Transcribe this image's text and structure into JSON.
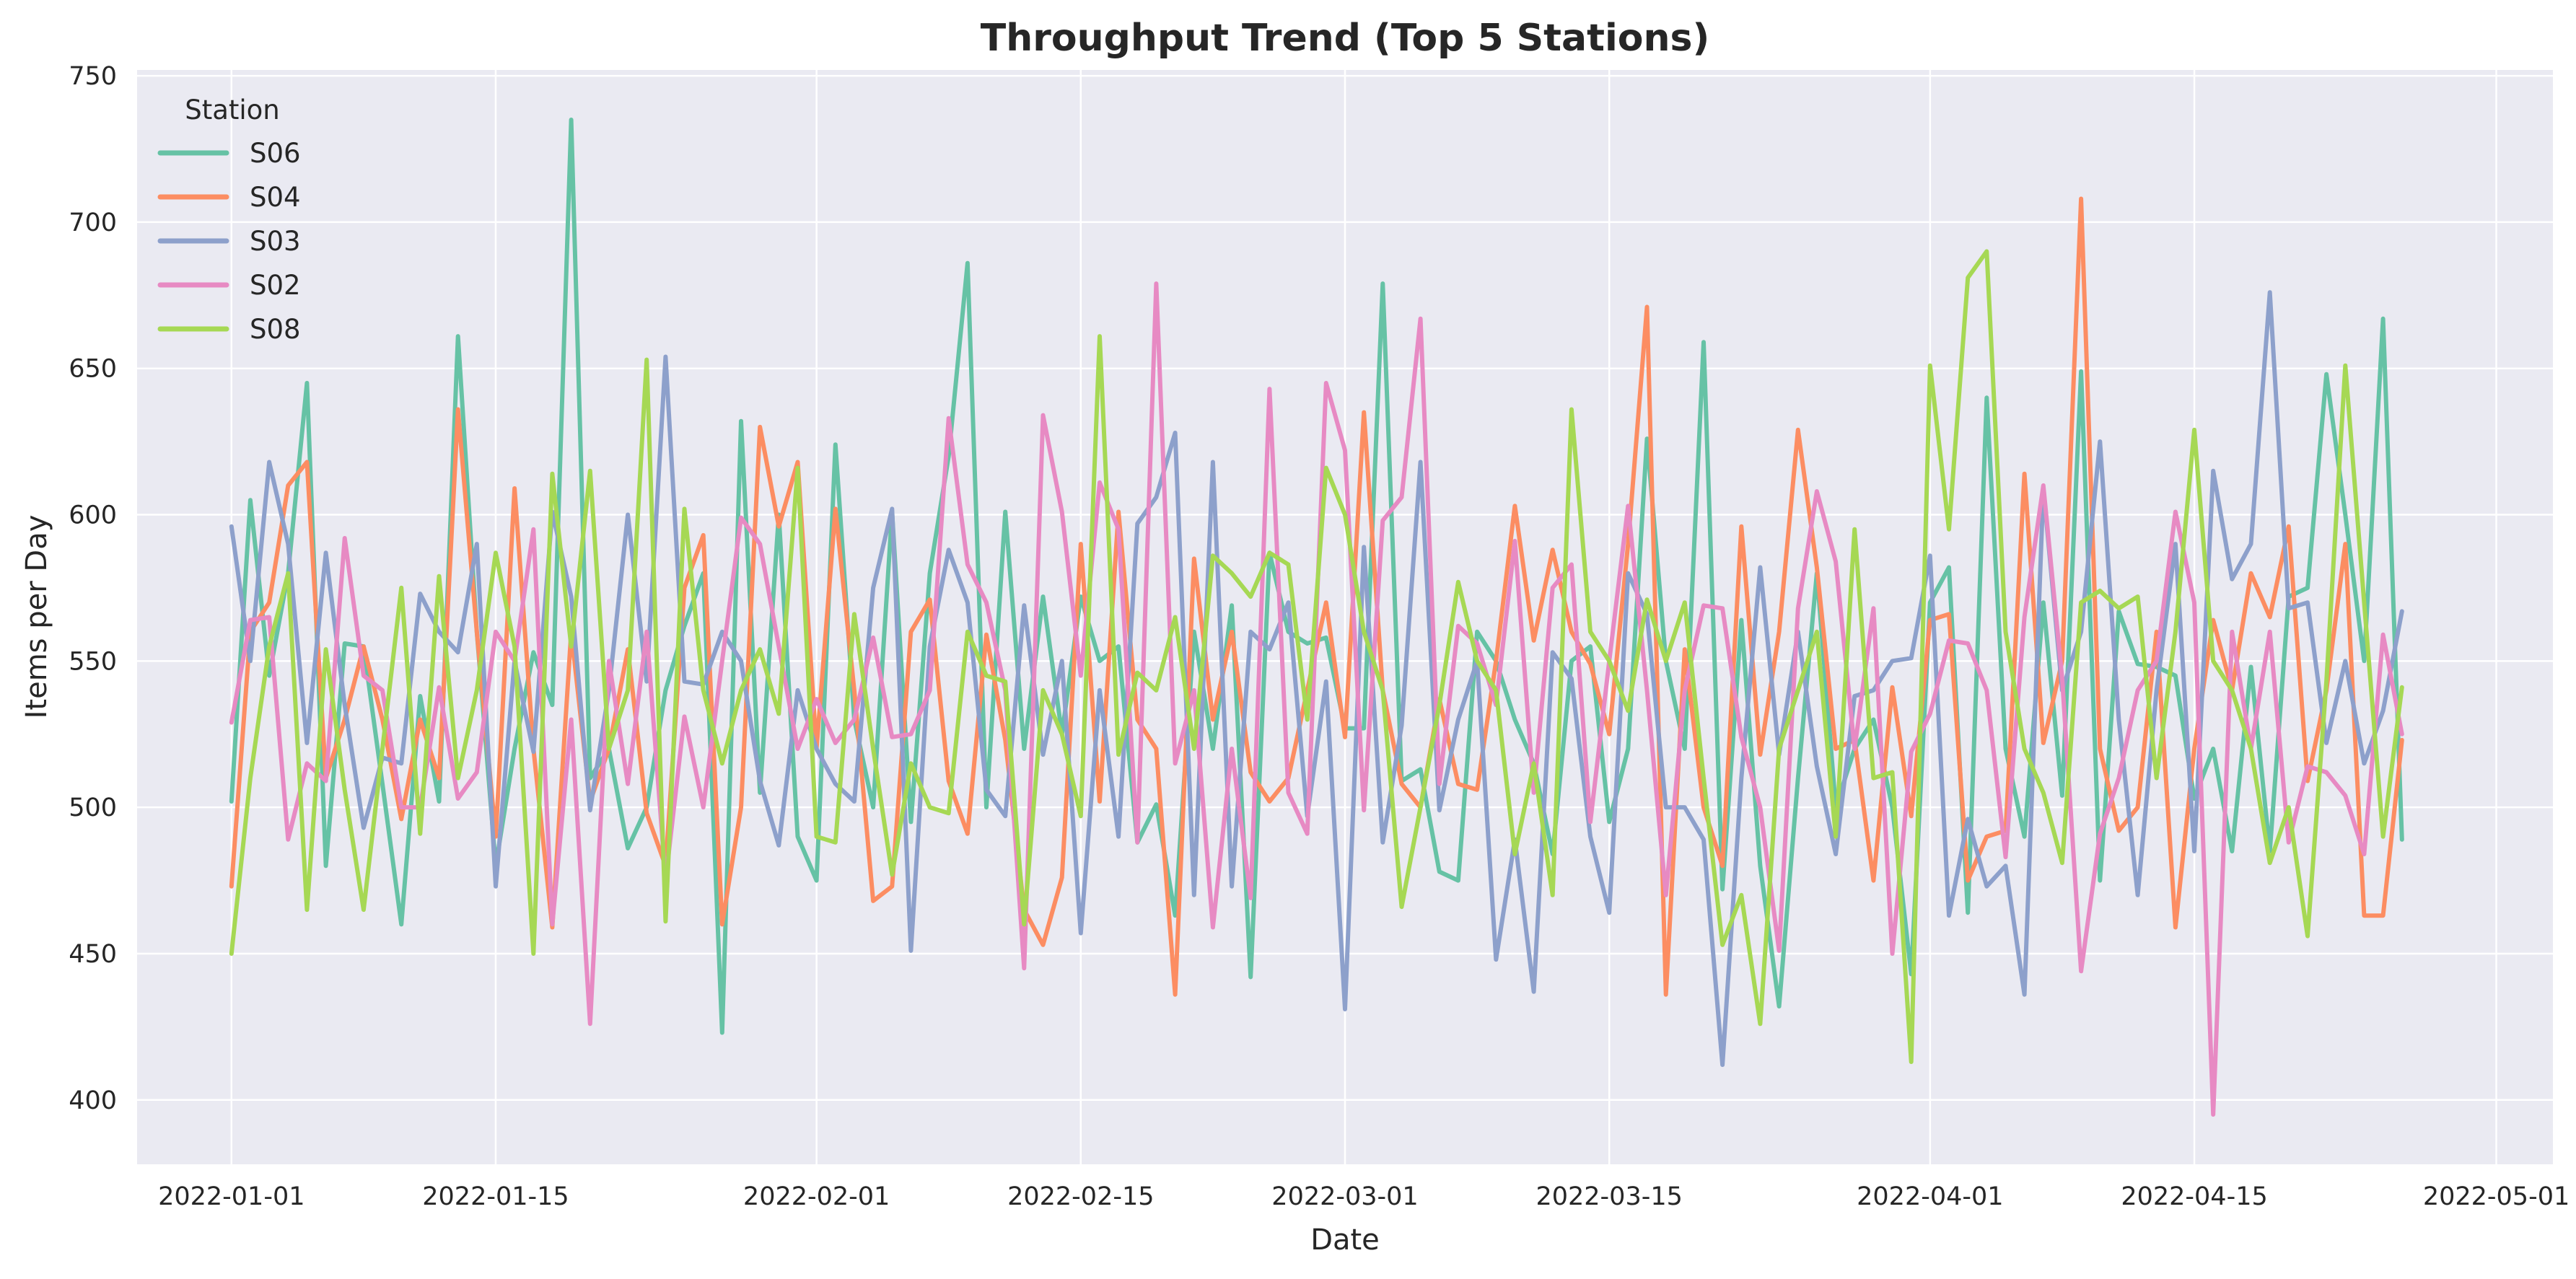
{
  "chart_data": {
    "type": "line",
    "title": "Throughput Trend (Top 5 Stations)",
    "xlabel": "Date",
    "ylabel": "Items per Day",
    "x_range": [
      "2021-12-27",
      "2022-05-04"
    ],
    "ylim": [
      378,
      752
    ],
    "x_ticks": [
      "2022-01-01",
      "2022-01-15",
      "2022-02-01",
      "2022-02-15",
      "2022-03-01",
      "2022-03-15",
      "2022-04-01",
      "2022-04-15",
      "2022-05-01"
    ],
    "y_ticks": [
      400,
      450,
      500,
      550,
      600,
      650,
      700,
      750
    ],
    "grid": true,
    "legend": {
      "title": "Station",
      "placement": "top-left"
    },
    "start_date": "2022-01-01",
    "series": [
      {
        "name": "S06",
        "color": "#66c2a5",
        "values": [
          502,
          605,
          545,
          580,
          645,
          480,
          556,
          555,
          508,
          460,
          538,
          502,
          661,
          560,
          480,
          520,
          553,
          535,
          735,
          510,
          520,
          486,
          500,
          540,
          562,
          580,
          423,
          632,
          505,
          600,
          490,
          475,
          624,
          530,
          500,
          601,
          495,
          580,
          620,
          686,
          500,
          601,
          520,
          572,
          525,
          572,
          550,
          555,
          488,
          501,
          463,
          560,
          520,
          569,
          442,
          587,
          560,
          556,
          558,
          527,
          527,
          679,
          509,
          513,
          478,
          475,
          560,
          550,
          530,
          515,
          484,
          550,
          555,
          495,
          520,
          626,
          550,
          520,
          659,
          472,
          564,
          480,
          432,
          510,
          580,
          500,
          520,
          530,
          500,
          443,
          570,
          582,
          464,
          640,
          520,
          490,
          570,
          504,
          649,
          475,
          567,
          549,
          548,
          545,
          503,
          520,
          485,
          548,
          485,
          572,
          575,
          648,
          600,
          550,
          667,
          489
        ]
      },
      {
        "name": "S04",
        "color": "#fc8d62",
        "values": [
          473,
          560,
          570,
          610,
          618,
          510,
          530,
          555,
          530,
          496,
          530,
          510,
          636,
          560,
          490,
          609,
          520,
          459,
          560,
          502,
          520,
          554,
          498,
          480,
          575,
          593,
          460,
          500,
          630,
          596,
          618,
          520,
          602,
          540,
          468,
          473,
          560,
          571,
          509,
          491,
          559,
          523,
          465,
          453,
          476,
          590,
          502,
          601,
          530,
          520,
          436,
          585,
          530,
          560,
          512,
          502,
          510,
          540,
          570,
          524,
          635,
          540,
          508,
          500,
          537,
          508,
          506,
          550,
          603,
          557,
          588,
          560,
          549,
          525,
          590,
          671,
          436,
          554,
          500,
          480,
          596,
          518,
          560,
          629,
          582,
          520,
          523,
          475,
          541,
          497,
          564,
          566,
          475,
          490,
          492,
          614,
          522,
          550,
          708,
          520,
          492,
          500,
          560,
          459,
          520,
          564,
          540,
          580,
          565,
          596,
          509,
          540,
          590,
          463,
          463,
          523
        ]
      },
      {
        "name": "S03",
        "color": "#8da0cb",
        "values": [
          596,
          550,
          618,
          590,
          522,
          587,
          535,
          493,
          517,
          515,
          573,
          560,
          553,
          590,
          473,
          550,
          519,
          601,
          572,
          499,
          540,
          600,
          543,
          654,
          543,
          542,
          560,
          550,
          509,
          487,
          540,
          520,
          508,
          502,
          575,
          602,
          451,
          555,
          588,
          570,
          506,
          497,
          569,
          518,
          550,
          457,
          540,
          490,
          597,
          606,
          628,
          470,
          618,
          473,
          560,
          554,
          570,
          497,
          543,
          431,
          589,
          488,
          528,
          618,
          499,
          530,
          550,
          448,
          489,
          437,
          553,
          544,
          490,
          464,
          580,
          566,
          500,
          500,
          489,
          412,
          510,
          582,
          518,
          560,
          514,
          484,
          538,
          540,
          550,
          551,
          586,
          463,
          496,
          473,
          480,
          436,
          609,
          540,
          560,
          625,
          530,
          470,
          540,
          590,
          485,
          615,
          578,
          590,
          676,
          568,
          570,
          522,
          550,
          515,
          533,
          567
        ]
      },
      {
        "name": "S02",
        "color": "#e78ac3",
        "values": [
          529,
          564,
          565,
          489,
          515,
          509,
          592,
          545,
          540,
          500,
          500,
          541,
          503,
          512,
          560,
          550,
          595,
          460,
          530,
          426,
          550,
          508,
          560,
          475,
          531,
          500,
          550,
          599,
          590,
          555,
          520,
          537,
          522,
          530,
          558,
          524,
          525,
          540,
          633,
          583,
          570,
          540,
          445,
          634,
          601,
          545,
          611,
          595,
          488,
          679,
          515,
          540,
          459,
          520,
          469,
          643,
          505,
          491,
          645,
          622,
          499,
          598,
          606,
          667,
          508,
          562,
          556,
          535,
          591,
          505,
          575,
          583,
          495,
          550,
          603,
          540,
          470,
          540,
          569,
          568,
          524,
          500,
          451,
          568,
          608,
          584,
          520,
          568,
          450,
          519,
          532,
          557,
          556,
          540,
          483,
          565,
          610,
          544,
          444,
          491,
          510,
          540,
          550,
          601,
          570,
          395,
          560,
          520,
          560,
          488,
          514,
          512,
          504,
          484,
          559,
          525
        ]
      },
      {
        "name": "S08",
        "color": "#a6d854",
        "values": [
          450,
          510,
          555,
          580,
          465,
          554,
          506,
          465,
          520,
          575,
          491,
          579,
          510,
          540,
          587,
          555,
          450,
          614,
          555,
          615,
          520,
          540,
          653,
          461,
          602,
          540,
          515,
          540,
          554,
          532,
          616,
          490,
          488,
          566,
          520,
          477,
          515,
          500,
          498,
          560,
          545,
          543,
          460,
          540,
          525,
          497,
          661,
          518,
          546,
          540,
          565,
          520,
          586,
          580,
          572,
          587,
          583,
          530,
          616,
          600,
          560,
          540,
          466,
          500,
          535,
          577,
          550,
          540,
          484,
          515,
          470,
          636,
          560,
          550,
          533,
          571,
          550,
          570,
          510,
          453,
          470,
          426,
          520,
          540,
          560,
          490,
          595,
          510,
          512,
          413,
          651,
          595,
          681,
          690,
          560,
          520,
          505,
          481,
          570,
          574,
          568,
          572,
          510,
          560,
          629,
          550,
          540,
          520,
          481,
          500,
          456,
          543,
          651,
          570,
          490,
          541
        ]
      }
    ]
  }
}
